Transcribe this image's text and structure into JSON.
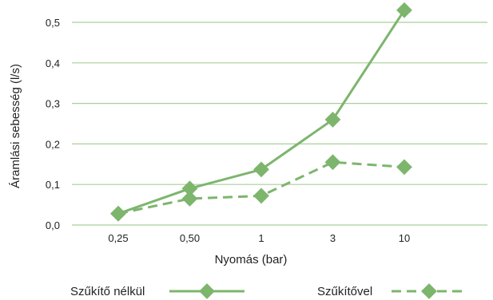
{
  "chart_data": {
    "type": "line",
    "categories": [
      "0,25",
      "0,50",
      "1",
      "3",
      "10"
    ],
    "ylabel": "Áramlási sebesség (l/s)",
    "xlabel": "Nyomás (bar)",
    "ylim": [
      0,
      0.5
    ],
    "y_ticks": [
      {
        "value": 0.0,
        "label": "0,0"
      },
      {
        "value": 0.1,
        "label": "0,1"
      },
      {
        "value": 0.2,
        "label": "0,2"
      },
      {
        "value": 0.3,
        "label": "0,3"
      },
      {
        "value": 0.4,
        "label": "0,4"
      },
      {
        "value": 0.5,
        "label": "0,5"
      }
    ],
    "grid": true,
    "legend_position": "bottom",
    "series": [
      {
        "name": "Szűkítő nélkül",
        "values": [
          0.028,
          0.09,
          0.137,
          0.26,
          0.53
        ],
        "style": "solid"
      },
      {
        "name": "Szűkítővel",
        "values": [
          0.028,
          0.065,
          0.072,
          0.155,
          0.143
        ],
        "style": "dashed"
      }
    ],
    "colors": {
      "series": "#7db56d",
      "grid": "#a9cf9a",
      "text": "#222222"
    }
  }
}
